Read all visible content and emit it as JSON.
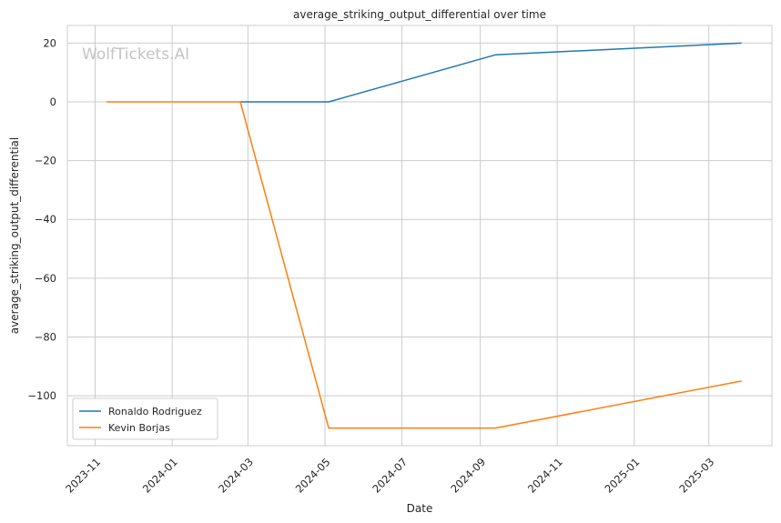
{
  "chart_data": {
    "type": "line",
    "title": "average_striking_output_differential over time",
    "xlabel": "Date",
    "ylabel": "average_striking_output_differential",
    "watermark": "WolfTickets.AI",
    "x_ticks": [
      "2023-11",
      "2024-01",
      "2024-03",
      "2024-05",
      "2024-07",
      "2024-09",
      "2024-11",
      "2025-01",
      "2025-03"
    ],
    "y_ticks": [
      20,
      0,
      -20,
      -40,
      -60,
      -80,
      -100
    ],
    "y_tick_labels": [
      "20",
      "0",
      "−20",
      "−40",
      "−60",
      "−80",
      "−100"
    ],
    "xlim": [
      "2023-10-10",
      "2025-04-20"
    ],
    "ylim": [
      -117,
      26
    ],
    "grid": true,
    "legend_position": "lower-left",
    "series": [
      {
        "name": "Ronaldo Rodriguez",
        "color": "#1f77b4",
        "points": [
          {
            "x": "2024-02-24",
            "y": 0
          },
          {
            "x": "2024-05-04",
            "y": 0
          },
          {
            "x": "2024-09-13",
            "y": 16
          },
          {
            "x": "2025-03-27",
            "y": 20
          }
        ]
      },
      {
        "name": "Kevin Borjas",
        "color": "#ff7f0e",
        "points": [
          {
            "x": "2023-11-10",
            "y": 0
          },
          {
            "x": "2024-02-24",
            "y": 0
          },
          {
            "x": "2024-05-04",
            "y": -111
          },
          {
            "x": "2024-09-13",
            "y": -111
          },
          {
            "x": "2025-03-27",
            "y": -95
          }
        ]
      }
    ]
  }
}
